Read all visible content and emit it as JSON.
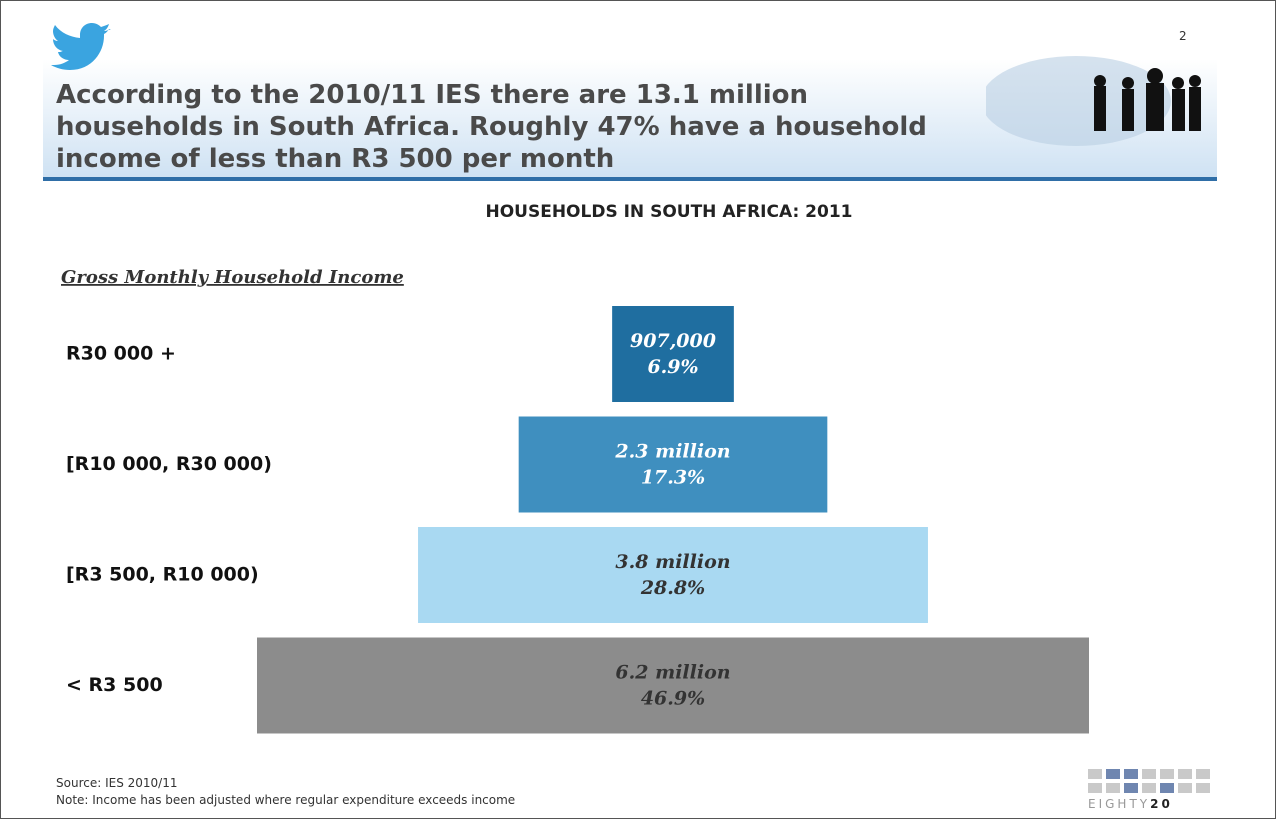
{
  "header": {
    "title": "According to the 2010/11 IES there are 13.1 million households in South Africa. Roughly 47% have a household income of less than R3 500 per month",
    "page_number": "2"
  },
  "chart_data": {
    "type": "pyramid",
    "title": "HOUSEHOLDS IN SOUTH AFRICA: 2011",
    "category_axis_label": "Gross Monthly Household Income",
    "categories": [
      "R30 000 +",
      "[R10 000, R30 000)",
      "[R3 500, R10 000)",
      "< R3 500"
    ],
    "values": [
      907000,
      2300000,
      3800000,
      6200000
    ],
    "value_labels": [
      "907,000",
      "2.3 million",
      "3.8 million",
      "6.2 million"
    ],
    "percent_values": [
      6.9,
      17.3,
      28.8,
      46.9
    ],
    "percent_labels": [
      "6.9%",
      "17.3%",
      "28.8%",
      "46.9%"
    ],
    "colors": [
      "#1f6ea0",
      "#3f8fbf",
      "#a9d9f2",
      "#8c8c8c"
    ],
    "label_colors": [
      "#ffffff",
      "#ffffff",
      "#333333",
      "#333333"
    ]
  },
  "footer": {
    "source": "Source: IES 2010/11",
    "note": "Note: Income has been adjusted where regular expenditure exceeds income",
    "logo_text": "EIGHTY",
    "logo_number": "20"
  }
}
